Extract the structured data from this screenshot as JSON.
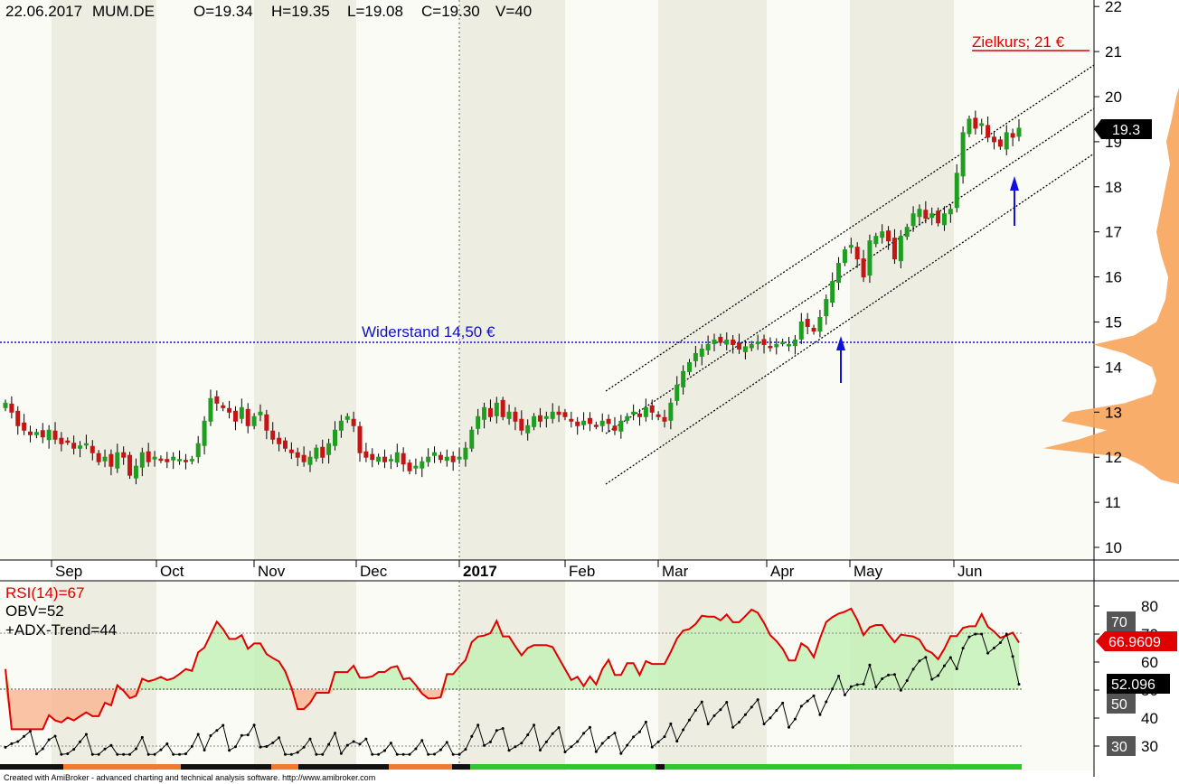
{
  "header": {
    "date": "22.06.2017",
    "symbol": "MUM.DE",
    "open": "O=19.34",
    "high": "H=19.35",
    "low": "L=19.08",
    "close": "C=19.30",
    "volume": "V=40"
  },
  "annotations": {
    "target": "Zielkurs; 21 €",
    "resistance": "Widerstand 14,50 €",
    "last_price": "19.3"
  },
  "indicators": {
    "rsi_label": "RSI(14)=67",
    "obv_label": "OBV=52",
    "adx_label": "+ADX-Trend=44",
    "rsi_value": "66.9609",
    "obv_value": "52.096",
    "level_70": "70",
    "level_50": "50",
    "level_30": "30"
  },
  "footer": "Created with AmiBroker - advanced charting and technical analysis software. http://www.amibroker.com",
  "colors": {
    "up": "#1f9e1f",
    "down": "#c41515",
    "rsi": "#e00000",
    "obv": "#000000",
    "resistance": "#1010c8",
    "volume_profile": "#f7a55a",
    "arrow": "#1010e0"
  },
  "chart_data": [
    {
      "type": "candlestick",
      "y_axis_ticks": [
        "10",
        "11",
        "12",
        "13",
        "14",
        "15",
        "16",
        "17",
        "18",
        "19",
        "20",
        "21",
        "22"
      ],
      "ylim": [
        9.0,
        22.3
      ],
      "x_axis_ticks": [
        "Sep",
        "Oct",
        "Nov",
        "Dec",
        "2017",
        "Feb",
        "Mar",
        "Apr",
        "May",
        "Jun"
      ],
      "closes": [
        13.2,
        13.0,
        12.7,
        12.6,
        12.5,
        12.55,
        12.45,
        12.6,
        12.4,
        12.3,
        12.35,
        12.2,
        12.25,
        12.3,
        12.1,
        11.9,
        12.0,
        11.8,
        12.1,
        12.0,
        11.6,
        11.8,
        12.1,
        11.9,
        12.0,
        11.95,
        11.9,
        12.0,
        11.95,
        11.9,
        11.95,
        12.3,
        12.8,
        13.3,
        13.2,
        13.1,
        13.0,
        12.8,
        13.1,
        12.7,
        12.9,
        13.0,
        12.6,
        12.4,
        12.3,
        12.2,
        12.1,
        12.0,
        11.9,
        12.0,
        12.2,
        12.0,
        12.3,
        12.6,
        12.8,
        12.9,
        12.7,
        12.1,
        12.0,
        11.95,
        12.0,
        11.9,
        11.95,
        12.1,
        11.85,
        11.7,
        11.8,
        11.9,
        12.0,
        12.1,
        11.95,
        12.0,
        11.9,
        12.0,
        12.2,
        12.6,
        12.9,
        13.1,
        12.9,
        13.2,
        12.9,
        13.0,
        12.8,
        12.6,
        12.7,
        12.9,
        12.8,
        12.9,
        13.0,
        12.95,
        12.9,
        12.8,
        12.7,
        12.8,
        12.75,
        12.7,
        12.8,
        12.75,
        12.6,
        12.8,
        12.9,
        13.0,
        12.9,
        13.1,
        13.0,
        12.9,
        12.8,
        13.2,
        13.6,
        13.9,
        14.1,
        14.3,
        14.4,
        14.5,
        14.6,
        14.55,
        14.6,
        14.5,
        14.4,
        14.45,
        14.5,
        14.55,
        14.5,
        14.45,
        14.5,
        14.55,
        14.5,
        14.6,
        15.0,
        14.9,
        14.8,
        15.1,
        15.5,
        15.9,
        16.3,
        16.6,
        16.7,
        16.4,
        16.0,
        16.8,
        16.9,
        17.0,
        16.8,
        16.4,
        16.9,
        17.1,
        17.4,
        17.5,
        17.3,
        17.4,
        17.2,
        17.4,
        17.5,
        18.3,
        19.2,
        19.5,
        19.3,
        19.4,
        19.1,
        19.0,
        18.9,
        19.2,
        19.1,
        19.3
      ],
      "price_label": "19.3",
      "resistance_level": 14.5,
      "target_level": 21.0
    },
    {
      "type": "line",
      "series": [
        {
          "name": "RSI(14)",
          "last": 66.9609
        },
        {
          "name": "OBV",
          "last": 52.096
        }
      ],
      "y_axis_ticks": [
        "30",
        "40",
        "50",
        "60",
        "70",
        "80"
      ],
      "ylim": [
        25,
        85
      ],
      "reference_levels": [
        30,
        50,
        70
      ]
    }
  ]
}
